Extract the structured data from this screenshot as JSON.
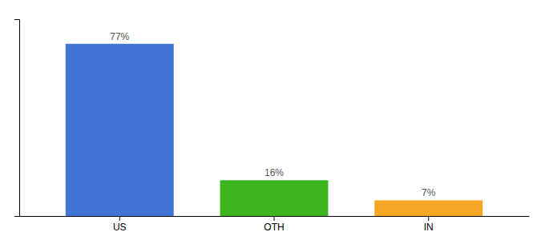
{
  "chart_data": {
    "type": "bar",
    "categories": [
      "US",
      "OTH",
      "IN"
    ],
    "values": [
      77,
      16,
      7
    ],
    "value_labels": [
      "77%",
      "16%",
      "7%"
    ],
    "colors": [
      "#4176d4",
      "#3cb520",
      "#f5a623"
    ],
    "ylim": [
      0,
      88
    ],
    "data_labels": true,
    "tick_labels": "x",
    "grid": false
  }
}
